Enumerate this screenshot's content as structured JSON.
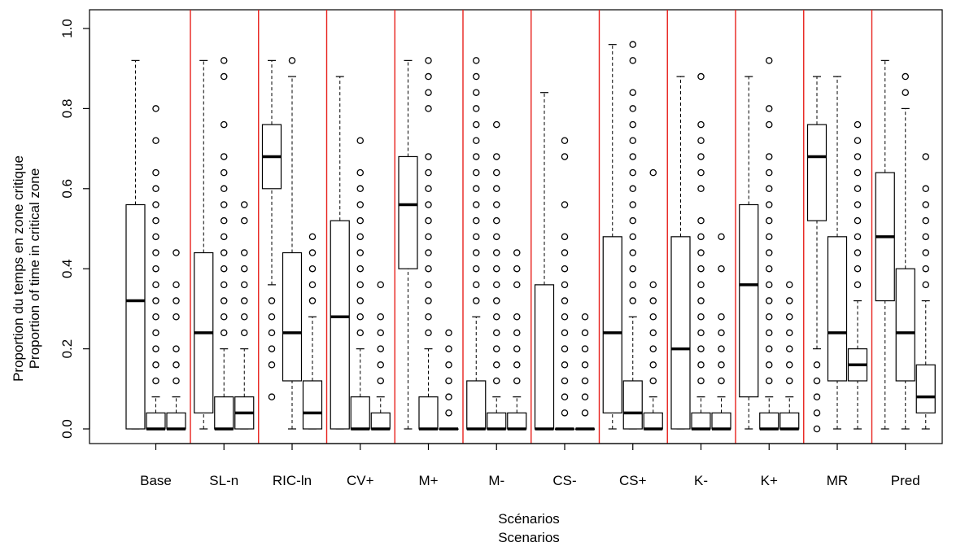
{
  "chart_data": {
    "type": "boxplot",
    "xlabel": [
      "Scénarios",
      "Scenarios"
    ],
    "ylabel": [
      "Proportion du temps en zone critique",
      "Proportion of time in critical zone"
    ],
    "ylim": [
      0,
      1
    ],
    "yticks": [
      "0.0",
      "0.2",
      "0.4",
      "0.6",
      "0.8",
      "1.0"
    ],
    "ytick_values": [
      0,
      0.2,
      0.4,
      0.6,
      0.8,
      1.0
    ],
    "separator_color": "#e8211c",
    "groups": [
      {
        "label": "Base",
        "boxes": [
          {
            "lw": 0,
            "q1": 0,
            "med": 0.32,
            "q3": 0.56,
            "uw": 0.92,
            "out": []
          },
          {
            "lw": 0,
            "q1": 0,
            "med": 0,
            "q3": 0.04,
            "uw": 0.08,
            "out": [
              0.12,
              0.16,
              0.2,
              0.24,
              0.28,
              0.32,
              0.36,
              0.4,
              0.44,
              0.48,
              0.52,
              0.56,
              0.6,
              0.64,
              0.72,
              0.8
            ]
          },
          {
            "lw": 0,
            "q1": 0,
            "med": 0,
            "q3": 0.04,
            "uw": 0.08,
            "out": [
              0.12,
              0.16,
              0.2,
              0.28,
              0.32,
              0.36,
              0.44
            ]
          }
        ]
      },
      {
        "label": "SL-n",
        "boxes": [
          {
            "lw": 0,
            "q1": 0.04,
            "med": 0.24,
            "q3": 0.44,
            "uw": 0.92,
            "out": []
          },
          {
            "lw": 0,
            "q1": 0,
            "med": 0,
            "q3": 0.08,
            "uw": 0.2,
            "out": [
              0.24,
              0.28,
              0.32,
              0.36,
              0.4,
              0.44,
              0.48,
              0.52,
              0.56,
              0.6,
              0.64,
              0.68,
              0.76,
              0.88,
              0.92
            ]
          },
          {
            "lw": 0,
            "q1": 0,
            "med": 0.04,
            "q3": 0.08,
            "uw": 0.2,
            "out": [
              0.24,
              0.28,
              0.32,
              0.36,
              0.4,
              0.44,
              0.52,
              0.56
            ]
          }
        ]
      },
      {
        "label": "RIC-ln",
        "boxes": [
          {
            "lw": 0.36,
            "q1": 0.6,
            "med": 0.68,
            "q3": 0.76,
            "uw": 0.92,
            "out": [
              0.08,
              0.16,
              0.2,
              0.24,
              0.28,
              0.32
            ]
          },
          {
            "lw": 0,
            "q1": 0.12,
            "med": 0.24,
            "q3": 0.44,
            "uw": 0.88,
            "out": [
              0.92
            ]
          },
          {
            "lw": 0,
            "q1": 0,
            "med": 0.04,
            "q3": 0.12,
            "uw": 0.28,
            "out": [
              0.32,
              0.36,
              0.4,
              0.44,
              0.48
            ]
          }
        ]
      },
      {
        "label": "CV+",
        "boxes": [
          {
            "lw": 0,
            "q1": 0,
            "med": 0.28,
            "q3": 0.52,
            "uw": 0.88,
            "out": []
          },
          {
            "lw": 0,
            "q1": 0,
            "med": 0,
            "q3": 0.08,
            "uw": 0.2,
            "out": [
              0.24,
              0.28,
              0.32,
              0.36,
              0.4,
              0.44,
              0.48,
              0.52,
              0.56,
              0.6,
              0.64,
              0.72
            ]
          },
          {
            "lw": 0,
            "q1": 0,
            "med": 0,
            "q3": 0.04,
            "uw": 0.08,
            "out": [
              0.12,
              0.16,
              0.2,
              0.24,
              0.28,
              0.36
            ]
          }
        ]
      },
      {
        "label": "M+",
        "boxes": [
          {
            "lw": 0,
            "q1": 0.4,
            "med": 0.56,
            "q3": 0.68,
            "uw": 0.92,
            "out": []
          },
          {
            "lw": 0,
            "q1": 0,
            "med": 0,
            "q3": 0.08,
            "uw": 0.2,
            "out": [
              0.24,
              0.28,
              0.32,
              0.36,
              0.4,
              0.44,
              0.48,
              0.52,
              0.56,
              0.6,
              0.64,
              0.68,
              0.8,
              0.84,
              0.88,
              0.92
            ]
          },
          {
            "lw": 0,
            "q1": 0,
            "med": 0,
            "q3": 0,
            "uw": 0,
            "out": [
              0.04,
              0.08,
              0.12,
              0.16,
              0.2,
              0.24
            ]
          }
        ]
      },
      {
        "label": "M-",
        "boxes": [
          {
            "lw": 0,
            "q1": 0,
            "med": 0,
            "q3": 0.12,
            "uw": 0.28,
            "out": [
              0.32,
              0.36,
              0.4,
              0.44,
              0.48,
              0.52,
              0.56,
              0.6,
              0.64,
              0.68,
              0.72,
              0.76,
              0.8,
              0.84,
              0.88,
              0.92
            ]
          },
          {
            "lw": 0,
            "q1": 0,
            "med": 0,
            "q3": 0.04,
            "uw": 0.08,
            "out": [
              0.12,
              0.16,
              0.2,
              0.24,
              0.28,
              0.32,
              0.36,
              0.4,
              0.44,
              0.48,
              0.52,
              0.56,
              0.6,
              0.64,
              0.68,
              0.76
            ]
          },
          {
            "lw": 0,
            "q1": 0,
            "med": 0,
            "q3": 0.04,
            "uw": 0.08,
            "out": [
              0.12,
              0.16,
              0.2,
              0.24,
              0.28,
              0.36,
              0.4,
              0.44
            ]
          }
        ]
      },
      {
        "label": "CS-",
        "boxes": [
          {
            "lw": 0,
            "q1": 0,
            "med": 0,
            "q3": 0.36,
            "uw": 0.84,
            "out": []
          },
          {
            "lw": 0,
            "q1": 0,
            "med": 0,
            "q3": 0,
            "uw": 0,
            "out": [
              0.04,
              0.08,
              0.12,
              0.16,
              0.2,
              0.24,
              0.28,
              0.32,
              0.36,
              0.4,
              0.44,
              0.48,
              0.56,
              0.68,
              0.72
            ]
          },
          {
            "lw": 0,
            "q1": 0,
            "med": 0,
            "q3": 0,
            "uw": 0,
            "out": [
              0.04,
              0.08,
              0.12,
              0.16,
              0.2,
              0.24,
              0.28
            ]
          }
        ]
      },
      {
        "label": "CS+",
        "boxes": [
          {
            "lw": 0,
            "q1": 0.04,
            "med": 0.24,
            "q3": 0.48,
            "uw": 0.96,
            "out": []
          },
          {
            "lw": 0,
            "q1": 0,
            "med": 0.04,
            "q3": 0.12,
            "uw": 0.28,
            "out": [
              0.32,
              0.36,
              0.4,
              0.44,
              0.48,
              0.52,
              0.56,
              0.6,
              0.64,
              0.68,
              0.72,
              0.76,
              0.8,
              0.84,
              0.92,
              0.96
            ]
          },
          {
            "lw": 0,
            "q1": 0,
            "med": 0,
            "q3": 0.04,
            "uw": 0.08,
            "out": [
              0.12,
              0.16,
              0.2,
              0.24,
              0.28,
              0.32,
              0.36,
              0.64
            ]
          }
        ]
      },
      {
        "label": "K-",
        "boxes": [
          {
            "lw": 0,
            "q1": 0,
            "med": 0.2,
            "q3": 0.48,
            "uw": 0.88,
            "out": []
          },
          {
            "lw": 0,
            "q1": 0,
            "med": 0,
            "q3": 0.04,
            "uw": 0.08,
            "out": [
              0.12,
              0.16,
              0.2,
              0.24,
              0.28,
              0.32,
              0.36,
              0.4,
              0.44,
              0.48,
              0.52,
              0.6,
              0.64,
              0.68,
              0.72,
              0.76,
              0.88
            ]
          },
          {
            "lw": 0,
            "q1": 0,
            "med": 0,
            "q3": 0.04,
            "uw": 0.08,
            "out": [
              0.12,
              0.16,
              0.2,
              0.24,
              0.28,
              0.4,
              0.48
            ]
          }
        ]
      },
      {
        "label": "K+",
        "boxes": [
          {
            "lw": 0,
            "q1": 0.08,
            "med": 0.36,
            "q3": 0.56,
            "uw": 0.88,
            "out": []
          },
          {
            "lw": 0,
            "q1": 0,
            "med": 0,
            "q3": 0.04,
            "uw": 0.08,
            "out": [
              0.12,
              0.16,
              0.2,
              0.24,
              0.28,
              0.32,
              0.36,
              0.4,
              0.44,
              0.48,
              0.52,
              0.56,
              0.6,
              0.64,
              0.68,
              0.76,
              0.8,
              0.92
            ]
          },
          {
            "lw": 0,
            "q1": 0,
            "med": 0,
            "q3": 0.04,
            "uw": 0.08,
            "out": [
              0.12,
              0.16,
              0.2,
              0.24,
              0.28,
              0.32,
              0.36
            ]
          }
        ]
      },
      {
        "label": "MR",
        "boxes": [
          {
            "lw": 0.2,
            "q1": 0.52,
            "med": 0.68,
            "q3": 0.76,
            "uw": 0.88,
            "out": [
              0,
              0.04,
              0.08,
              0.12,
              0.16
            ]
          },
          {
            "lw": 0,
            "q1": 0.12,
            "med": 0.24,
            "q3": 0.48,
            "uw": 0.88,
            "out": []
          },
          {
            "lw": 0,
            "q1": 0.12,
            "med": 0.16,
            "q3": 0.2,
            "uw": 0.32,
            "out": [
              0.36,
              0.4,
              0.44,
              0.48,
              0.52,
              0.56,
              0.6,
              0.64,
              0.68,
              0.72,
              0.76
            ]
          }
        ]
      },
      {
        "label": "Pred",
        "boxes": [
          {
            "lw": 0,
            "q1": 0.32,
            "med": 0.48,
            "q3": 0.64,
            "uw": 0.92,
            "out": []
          },
          {
            "lw": 0,
            "q1": 0.12,
            "med": 0.24,
            "q3": 0.4,
            "uw": 0.8,
            "out": [
              0.84,
              0.88
            ]
          },
          {
            "lw": 0,
            "q1": 0.04,
            "med": 0.08,
            "q3": 0.16,
            "uw": 0.32,
            "out": [
              0.36,
              0.4,
              0.44,
              0.48,
              0.52,
              0.56,
              0.6,
              0.68
            ]
          }
        ]
      }
    ]
  }
}
